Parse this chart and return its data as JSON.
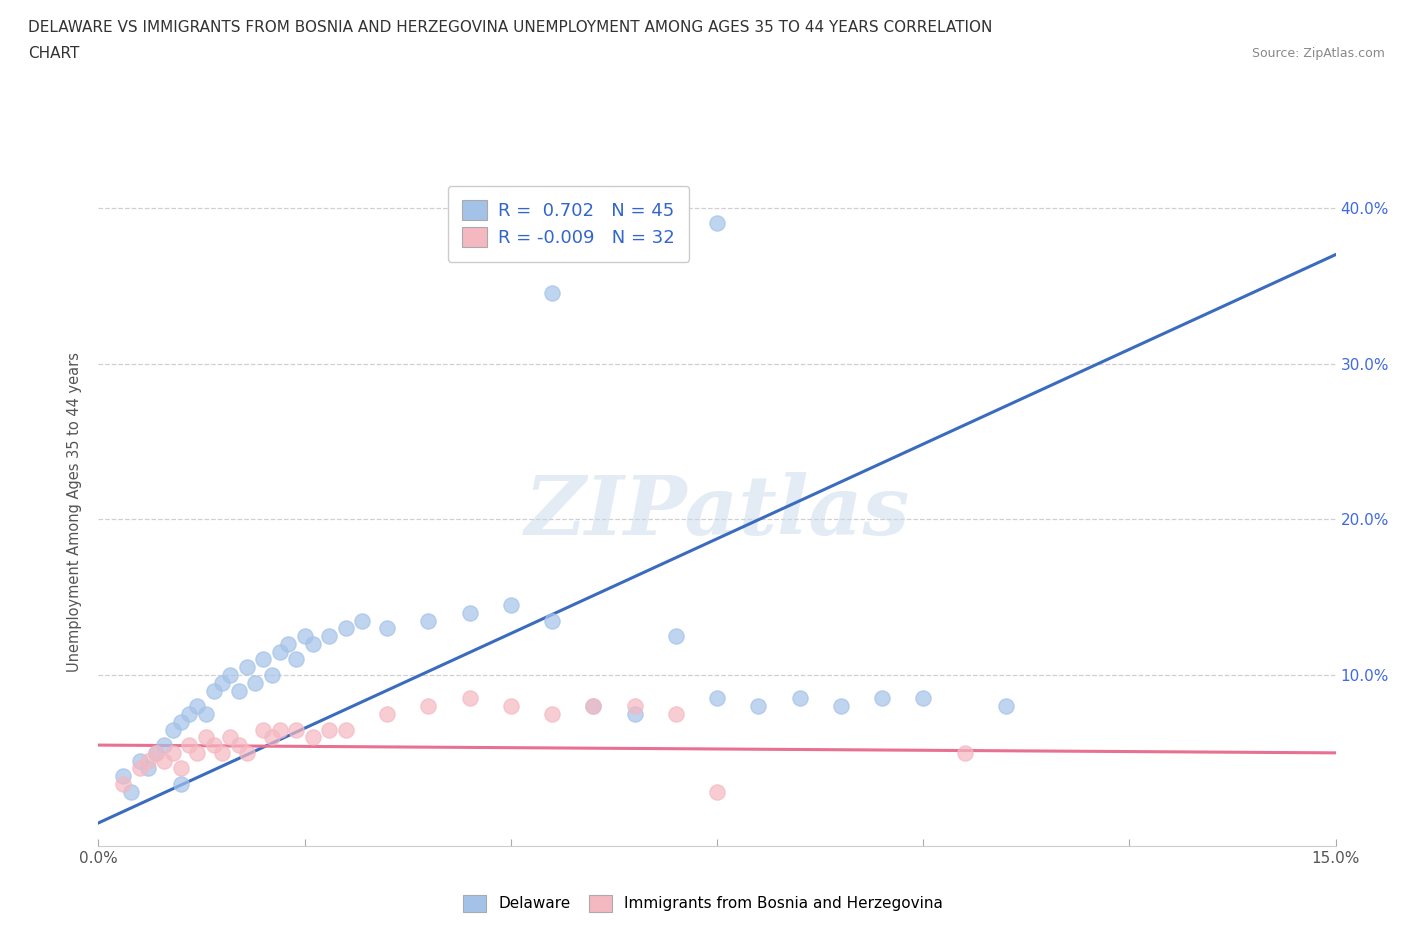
{
  "title_line1": "DELAWARE VS IMMIGRANTS FROM BOSNIA AND HERZEGOVINA UNEMPLOYMENT AMONG AGES 35 TO 44 YEARS CORRELATION",
  "title_line2": "CHART",
  "source_text": "Source: ZipAtlas.com",
  "ylabel": "Unemployment Among Ages 35 to 44 years",
  "xlim": [
    0.0,
    15.0
  ],
  "ylim": [
    -1.0,
    42.0
  ],
  "yticks_right": [
    10.0,
    20.0,
    30.0,
    40.0
  ],
  "ytick_labels_right": [
    "10.0%",
    "20.0%",
    "30.0%",
    "40.0%"
  ],
  "watermark": "ZIPatlas",
  "legend_entry1": "R =  0.702   N = 45",
  "legend_entry2": "R = -0.009   N = 32",
  "blue_color": "#a4c2e8",
  "pink_color": "#f4b8c1",
  "blue_line_color": "#3a6bbf",
  "pink_line_color": "#e87090",
  "background_color": "#ffffff",
  "grid_color": "#d0d0d0",
  "blue_scatter_x": [
    0.3,
    0.4,
    0.5,
    0.6,
    0.7,
    0.8,
    0.9,
    1.0,
    1.0,
    1.1,
    1.2,
    1.3,
    1.4,
    1.5,
    1.6,
    1.7,
    1.8,
    1.9,
    2.0,
    2.1,
    2.2,
    2.3,
    2.4,
    2.5,
    2.6,
    2.8,
    3.0,
    3.2,
    3.5,
    4.0,
    4.5,
    5.0,
    5.5,
    6.0,
    6.5,
    7.0,
    7.5,
    8.0,
    8.5,
    9.0,
    9.5,
    10.0,
    11.0,
    5.5,
    7.5
  ],
  "blue_scatter_y": [
    3.5,
    2.5,
    4.5,
    4.0,
    5.0,
    5.5,
    6.5,
    7.0,
    3.0,
    7.5,
    8.0,
    7.5,
    9.0,
    9.5,
    10.0,
    9.0,
    10.5,
    9.5,
    11.0,
    10.0,
    11.5,
    12.0,
    11.0,
    12.5,
    12.0,
    12.5,
    13.0,
    13.5,
    13.0,
    13.5,
    14.0,
    14.5,
    13.5,
    8.0,
    7.5,
    12.5,
    8.5,
    8.0,
    8.5,
    8.0,
    8.5,
    8.5,
    8.0,
    34.5,
    39.0
  ],
  "pink_scatter_x": [
    0.3,
    0.5,
    0.6,
    0.7,
    0.8,
    0.9,
    1.0,
    1.1,
    1.2,
    1.3,
    1.4,
    1.5,
    1.6,
    1.7,
    1.8,
    2.0,
    2.1,
    2.2,
    2.4,
    2.6,
    2.8,
    3.0,
    3.5,
    4.0,
    4.5,
    5.0,
    5.5,
    6.0,
    6.5,
    7.0,
    7.5,
    10.5
  ],
  "pink_scatter_y": [
    3.0,
    4.0,
    4.5,
    5.0,
    4.5,
    5.0,
    4.0,
    5.5,
    5.0,
    6.0,
    5.5,
    5.0,
    6.0,
    5.5,
    5.0,
    6.5,
    6.0,
    6.5,
    6.5,
    6.0,
    6.5,
    6.5,
    7.5,
    8.0,
    8.5,
    8.0,
    7.5,
    8.0,
    8.0,
    7.5,
    2.5,
    5.0
  ],
  "blue_trend_x": [
    0.0,
    15.0
  ],
  "blue_trend_y": [
    0.5,
    37.0
  ],
  "pink_trend_x": [
    0.0,
    15.0
  ],
  "pink_trend_y": [
    5.5,
    5.0
  ],
  "legend_blue_label": "Delaware",
  "legend_pink_label": "Immigrants from Bosnia and Herzegovina"
}
